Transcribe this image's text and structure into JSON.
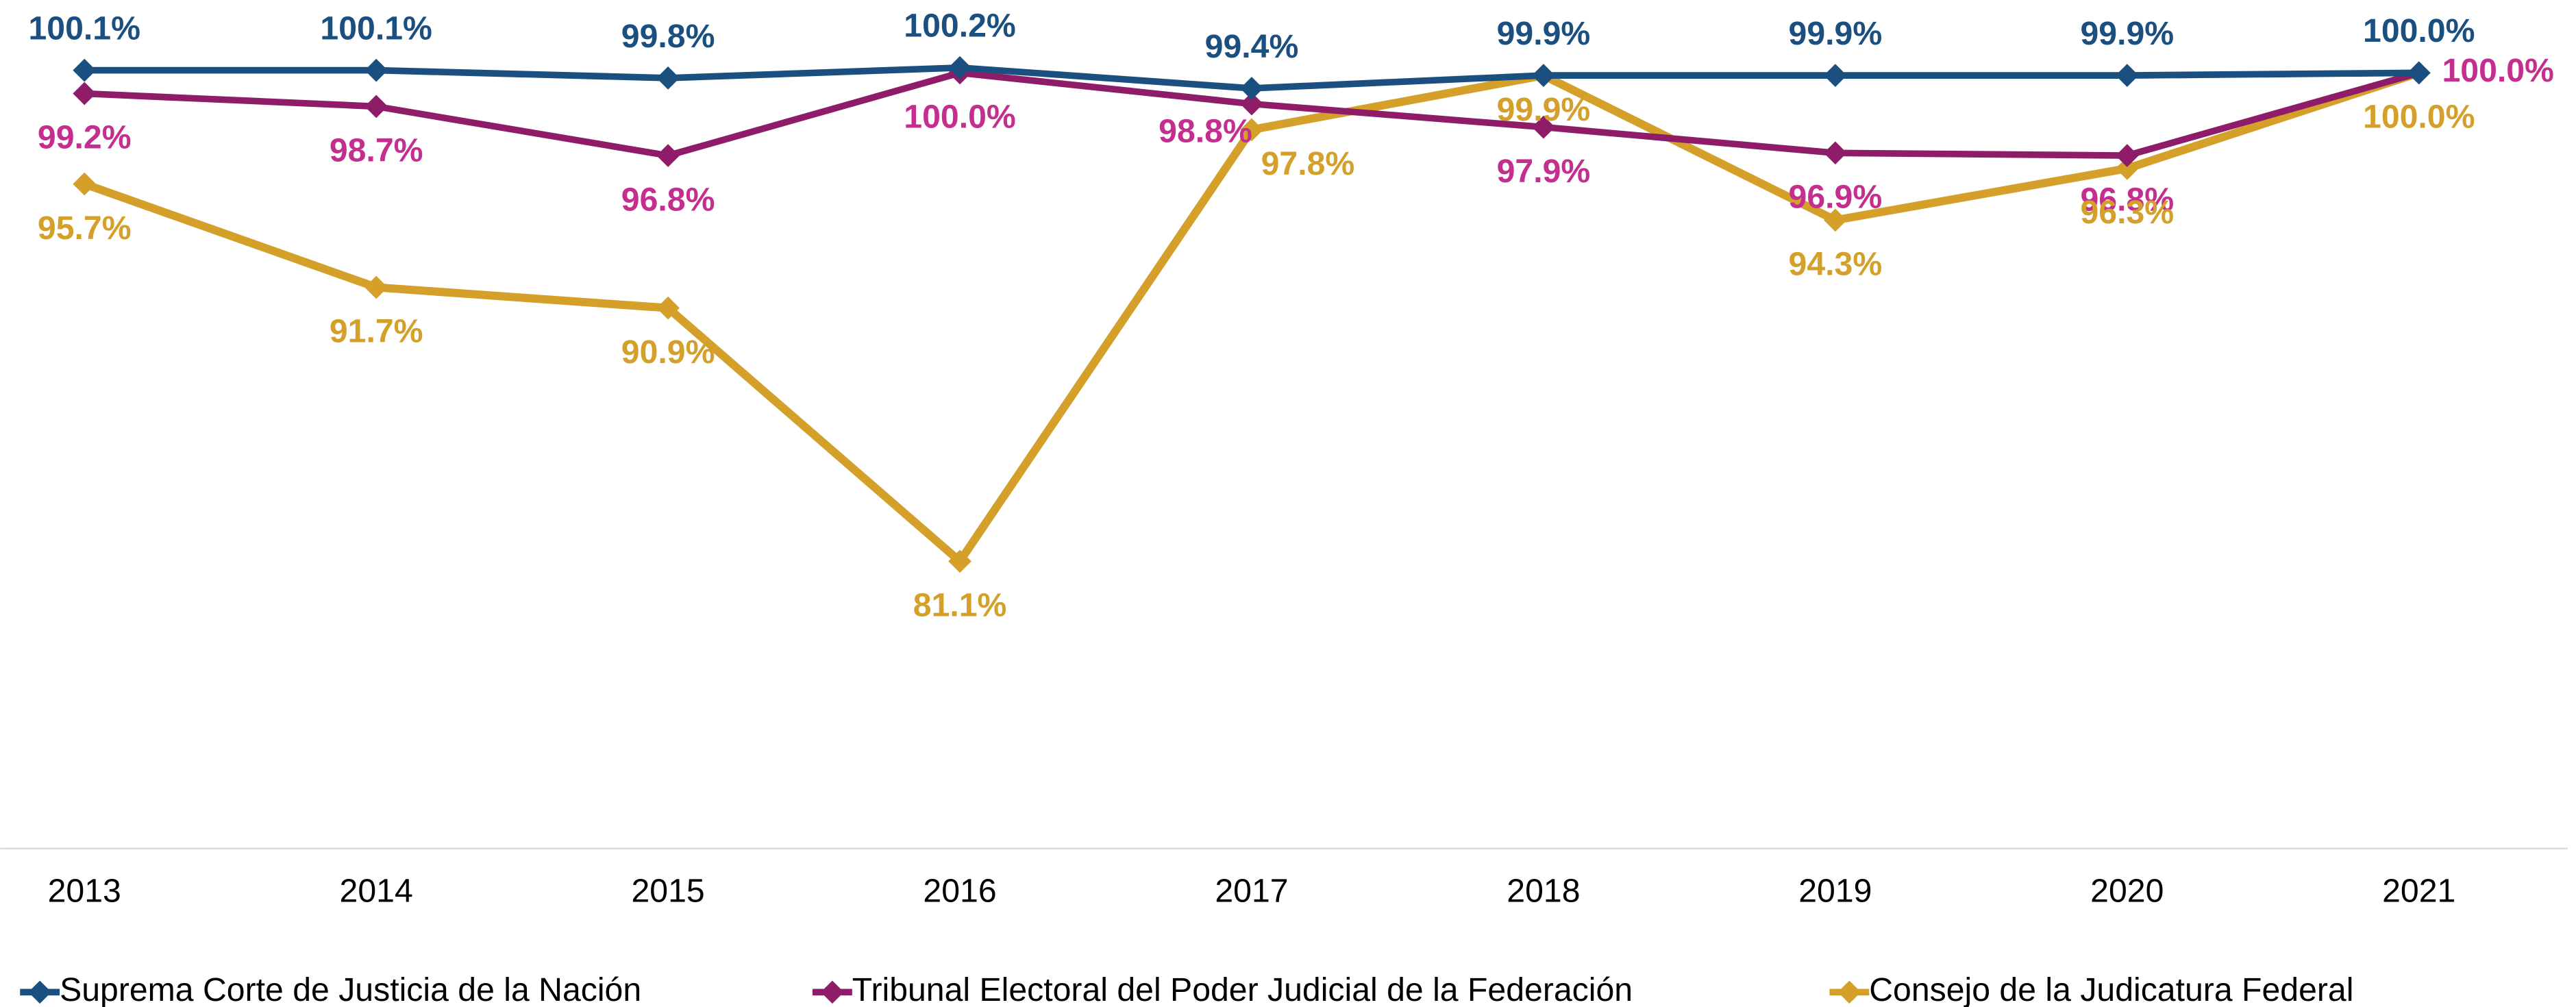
{
  "chart_data": {
    "type": "line",
    "categories": [
      "2013",
      "2014",
      "2015",
      "2016",
      "2017",
      "2018",
      "2019",
      "2020",
      "2021"
    ],
    "series": [
      {
        "name": "Suprema Corte de Justicia de la Nación",
        "color": "#1a4f80",
        "values": [
          100.1,
          100.1,
          99.8,
          100.2,
          99.4,
          99.9,
          99.9,
          99.9,
          100.0
        ],
        "value_labels": [
          "100.1%",
          "100.1%",
          "99.8%",
          "100.2%",
          "99.4%",
          "99.9%",
          "99.9%",
          "99.9%",
          "100.0%"
        ]
      },
      {
        "name": "Tribunal Electoral del Poder Judicial de la Federación",
        "color": "#8e1c68",
        "values": [
          99.2,
          98.7,
          96.8,
          100.0,
          98.8,
          97.9,
          96.9,
          96.8,
          100.0
        ],
        "value_labels": [
          "99.2%",
          "98.7%",
          "96.8%",
          "100.0%",
          "98.8%",
          "97.9%",
          "96.9%",
          "96.8%",
          "100.0%"
        ]
      },
      {
        "name": "Consejo de la Judicatura Federal",
        "color": "#d4a02a",
        "values": [
          95.7,
          91.7,
          90.9,
          81.1,
          97.8,
          99.9,
          94.3,
          96.3,
          100.0
        ],
        "value_labels": [
          "95.7%",
          "91.7%",
          "90.9%",
          "81.1%",
          "97.8%",
          "99.9%",
          "94.3%",
          "96.3%",
          "100.0%"
        ]
      }
    ],
    "legend": "bottom"
  }
}
